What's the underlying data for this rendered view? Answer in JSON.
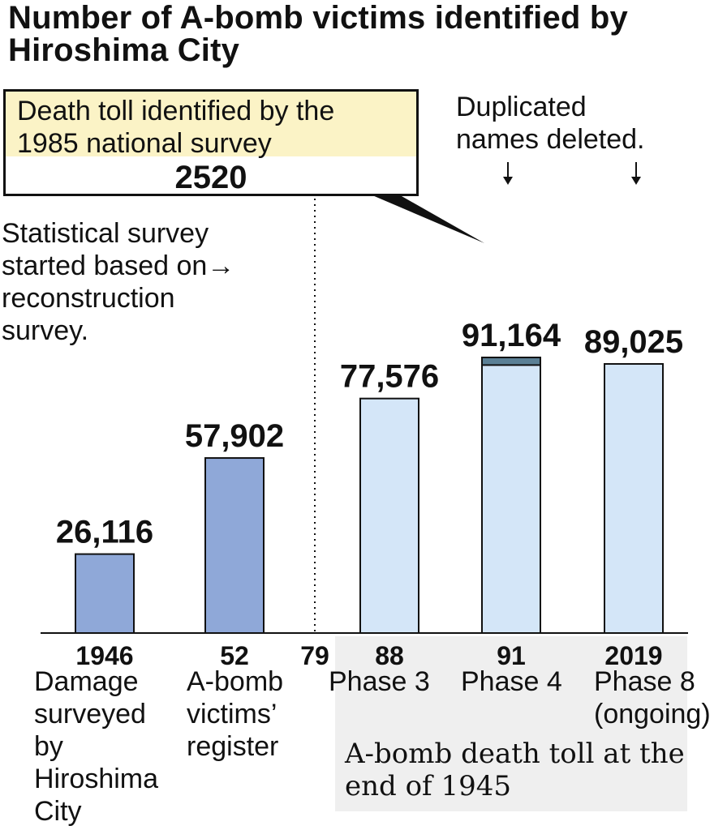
{
  "title": "Number of A-bomb victims identified by Hiroshima City",
  "callout": {
    "text": "Death toll identified by the\n1985 national survey",
    "value": "2520"
  },
  "notes": {
    "duplicated": "Duplicated\nnames deleted.",
    "statistical": "Statistical survey\nstarted based on→\nreconstruction\nsurvey.",
    "footnote": "A-bomb death toll at the\nend of 1945"
  },
  "colors": {
    "early_bar": "#8fa8d8",
    "phase_bar": "#d4e6f8",
    "survey_segment": "#5b7f95",
    "bar_outline": "#111111",
    "shade": "#efefef"
  },
  "chart_data": {
    "type": "bar",
    "title": "Number of A-bomb victims identified by Hiroshima City",
    "categories": [
      "1946",
      "52",
      "88",
      "91",
      "2019"
    ],
    "extra_tick": "79",
    "values": [
      26116,
      57902,
      77576,
      91164,
      89025
    ],
    "value_labels": [
      "26,116",
      "57,902",
      "77,576",
      "91,164",
      "89,025"
    ],
    "stacked_top_segment": {
      "category": "91",
      "value": 2520
    },
    "descriptions": [
      "Damage\nsurveyed\nby\nHiroshima\nCity",
      "A-bomb\nvictims’\nregister",
      "Phase 3",
      "Phase 4",
      "Phase 8\n(ongoing)"
    ],
    "ylim": [
      0,
      100000
    ],
    "xlabel": "",
    "ylabel": "",
    "grid": false
  }
}
